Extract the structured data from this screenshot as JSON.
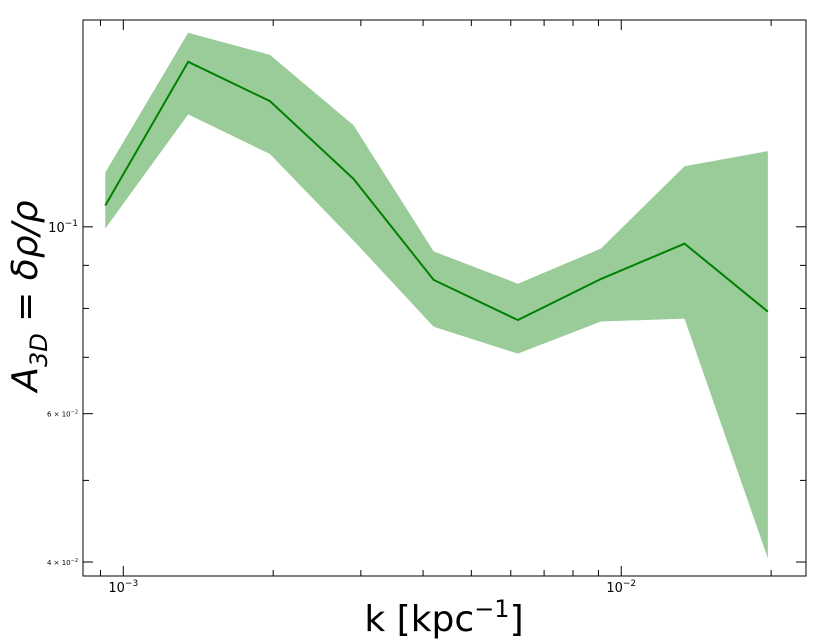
{
  "chart_data": {
    "type": "line",
    "title": "",
    "xlabel": "k [kpc",
    "xlabel_sup": "−1",
    "xlabel_close": "]",
    "ylabel_main": "A",
    "ylabel_sub": "3D",
    "ylabel_rest": " = δρ/ρ",
    "xscale": "log",
    "yscale": "log",
    "xlim": [
      0.00083,
      0.0235
    ],
    "ylim": [
      0.0385,
      0.176
    ],
    "xtick_labels": [
      {
        "value": 0.001,
        "base": "10",
        "exp": "−3"
      },
      {
        "value": 0.01,
        "base": "10",
        "exp": "−2"
      }
    ],
    "ytick_labels": [
      {
        "value": 0.1,
        "base": "10",
        "exp": "−1",
        "prefix": ""
      },
      {
        "value": 0.06,
        "base": "10",
        "exp": "−2",
        "prefix": "6 × "
      },
      {
        "value": 0.04,
        "base": "10",
        "exp": "−2",
        "prefix": "4 × "
      }
    ],
    "x_minor_ticks": [
      0.0009,
      0.002,
      0.003,
      0.004,
      0.005,
      0.006,
      0.007,
      0.008,
      0.009,
      0.02
    ],
    "y_minor_ticks": [
      0.05,
      0.07,
      0.08,
      0.09
    ],
    "series": [
      {
        "x": [
          0.00092,
          0.00135,
          0.00197,
          0.0029,
          0.0042,
          0.0062,
          0.0091,
          0.0134,
          0.0197
        ],
        "y": [
          0.106,
          0.157,
          0.141,
          0.114,
          0.0865,
          0.0775,
          0.0867,
          0.0955,
          0.0793
        ],
        "y_upper": [
          0.116,
          0.17,
          0.16,
          0.132,
          0.0935,
          0.0856,
          0.0942,
          0.118,
          0.123
        ],
        "y_lower": [
          0.0995,
          0.136,
          0.122,
          0.0963,
          0.0761,
          0.0707,
          0.0772,
          0.0778,
          0.0404
        ],
        "color": "#008000",
        "fill_color": "#99cc99"
      }
    ],
    "grid": false,
    "legend": "none"
  }
}
